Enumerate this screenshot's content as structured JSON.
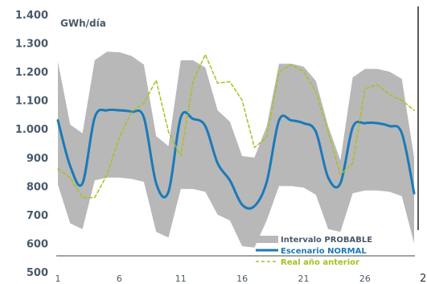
{
  "chart_data": {
    "type": "line",
    "ylabel": "GWh/día",
    "ylim": [
      500,
      1400
    ],
    "yticks": [
      "1.400",
      "1.300",
      "1.200",
      "1.100",
      "1.000",
      "900",
      "800",
      "700",
      "600",
      "500"
    ],
    "yticks_values": [
      1400,
      1300,
      1200,
      1100,
      1000,
      900,
      800,
      700,
      600,
      500
    ],
    "xlim": [
      1,
      30
    ],
    "xticks": [
      "1",
      "6",
      "11",
      "16",
      "21",
      "26"
    ],
    "xticks_values": [
      1,
      6,
      11,
      16,
      21,
      26
    ],
    "grid": false,
    "legend_position": "bottom-right",
    "x": [
      1,
      2,
      3,
      4,
      5,
      6,
      7,
      8,
      9,
      10,
      11,
      12,
      13,
      14,
      15,
      16,
      17,
      18,
      19,
      20,
      21,
      22,
      23,
      24,
      25,
      26,
      27,
      28,
      29,
      30
    ],
    "band": {
      "name": "Intervalo PROBABLE",
      "upper": [
        1235,
        1015,
        985,
        1240,
        1270,
        1268,
        1255,
        1225,
        975,
        940,
        1240,
        1240,
        1215,
        1065,
        1025,
        905,
        900,
        1010,
        1228,
        1228,
        1218,
        1168,
        1010,
        890,
        1180,
        1210,
        1210,
        1200,
        1175,
        900
      ],
      "lower": [
        805,
        670,
        650,
        820,
        830,
        830,
        825,
        815,
        640,
        620,
        790,
        790,
        780,
        700,
        680,
        590,
        585,
        680,
        800,
        800,
        795,
        770,
        650,
        640,
        775,
        785,
        785,
        780,
        765,
        600
      ]
    },
    "series": [
      {
        "name": "Escenario NORMAL",
        "values": [
          1030,
          870,
          810,
          1040,
          1065,
          1065,
          1060,
          1040,
          810,
          780,
          1040,
          1035,
          1010,
          880,
          820,
          735,
          730,
          815,
          1030,
          1030,
          1020,
          990,
          830,
          810,
          1005,
          1020,
          1020,
          1010,
          985,
          775
        ]
      },
      {
        "name": "Real año anterior",
        "values": [
          860,
          830,
          760,
          760,
          840,
          970,
          1060,
          1090,
          1170,
          990,
          905,
          1165,
          1260,
          1160,
          1165,
          1100,
          935,
          970,
          1200,
          1225,
          1200,
          1130,
          990,
          840,
          880,
          1140,
          1155,
          1120,
          1100,
          1065
        ]
      }
    ],
    "colors": {
      "band": "#b8b8b8",
      "normal": "#1a7ab8",
      "real": "#a8c020",
      "text": "#4a5a6a",
      "axis": "#444444"
    },
    "edge_labels": [
      "2"
    ]
  }
}
